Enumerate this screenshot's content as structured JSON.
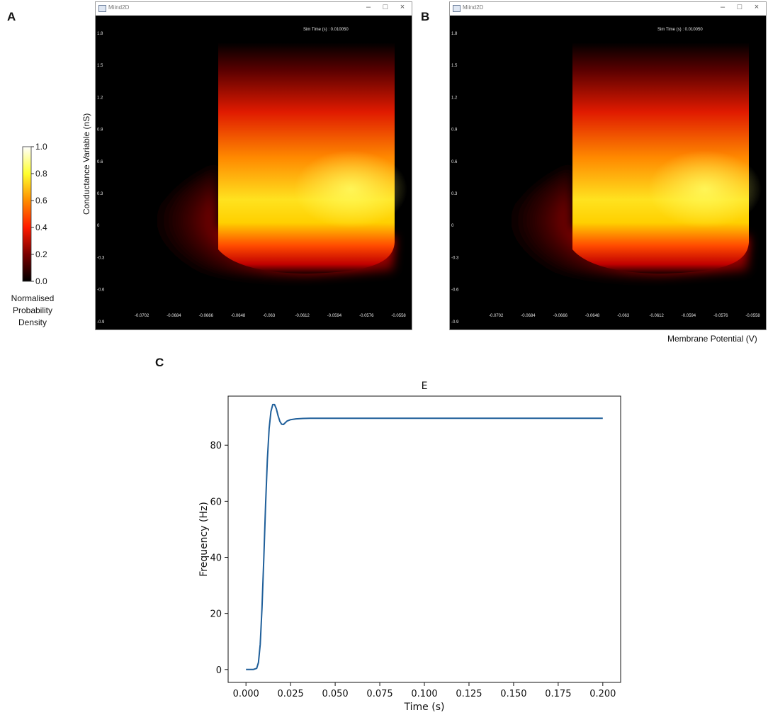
{
  "panels": {
    "a": "A",
    "b": "B",
    "c": "C"
  },
  "colorbar": {
    "ticks": [
      "1.0",
      "0.8",
      "0.6",
      "0.4",
      "0.2",
      "0.0"
    ],
    "label_lines": [
      "Normalised",
      "Probability",
      "Density"
    ],
    "colors": [
      "#000000",
      "#8b0000",
      "#ff2200",
      "#ff9900",
      "#ffff33",
      "#ffffff"
    ]
  },
  "window_a": {
    "title": "Miind2D",
    "sim_time": "Sim Time (s) : 0.010050",
    "y_ticks": [
      "1.8",
      "1.5",
      "1.2",
      "0.9",
      "0.6",
      "0.3",
      "0",
      "-0.3",
      "-0.6",
      "-0.9"
    ],
    "x_ticks": [
      "-0.0702",
      "-0.0684",
      "-0.0666",
      "-0.0648",
      "-0.063",
      "-0.0612",
      "-0.0594",
      "-0.0576",
      "-0.0558"
    ],
    "minimize_icon": "minimize-icon",
    "maximize_icon": "maximize-icon",
    "close_icon": "close-icon"
  },
  "window_b": {
    "title": "Miind2D",
    "sim_time": "Sim Time (s) : 0.010050",
    "y_ticks": [
      "1.8",
      "1.5",
      "1.2",
      "0.9",
      "0.6",
      "0.3",
      "0",
      "-0.3",
      "-0.6",
      "-0.9"
    ],
    "x_ticks": [
      "-0.0702",
      "-0.0684",
      "-0.0666",
      "-0.0648",
      "-0.063",
      "-0.0612",
      "-0.0594",
      "-0.0576",
      "-0.0558"
    ],
    "minimize_icon": "minimize-icon",
    "maximize_icon": "maximize-icon",
    "close_icon": "close-icon"
  },
  "axis_labels": {
    "conductance": "Conductance Variable (nS)",
    "membrane": "Membrane Potential (V)"
  },
  "chart_data": {
    "type": "line",
    "title": "E",
    "xlabel": "Time (s)",
    "ylabel": "Frequency (Hz)",
    "xlim": [
      -0.01,
      0.21
    ],
    "ylim": [
      -4.6,
      97.5
    ],
    "x_ticks": [
      "0.000",
      "0.025",
      "0.050",
      "0.075",
      "0.100",
      "0.125",
      "0.150",
      "0.175",
      "0.200"
    ],
    "y_ticks": [
      "0",
      "20",
      "40",
      "60",
      "80"
    ],
    "line_color": "#1f5f9a",
    "series": [
      {
        "x": [
          0.0,
          0.004,
          0.006,
          0.007,
          0.008,
          0.009,
          0.01,
          0.011,
          0.012,
          0.013,
          0.014,
          0.015,
          0.016,
          0.017,
          0.018,
          0.019,
          0.02,
          0.021,
          0.022,
          0.023,
          0.025,
          0.028,
          0.032,
          0.036,
          0.04,
          0.05,
          0.1,
          0.15,
          0.2
        ],
        "y": [
          0,
          0,
          0.4,
          2.5,
          9,
          22,
          40,
          59,
          75,
          86,
          92,
          94.5,
          94.5,
          93,
          90.5,
          88.5,
          87.5,
          87.4,
          88,
          88.6,
          89.1,
          89.4,
          89.55,
          89.6,
          89.6,
          89.6,
          89.6,
          89.6,
          89.6
        ]
      }
    ]
  }
}
